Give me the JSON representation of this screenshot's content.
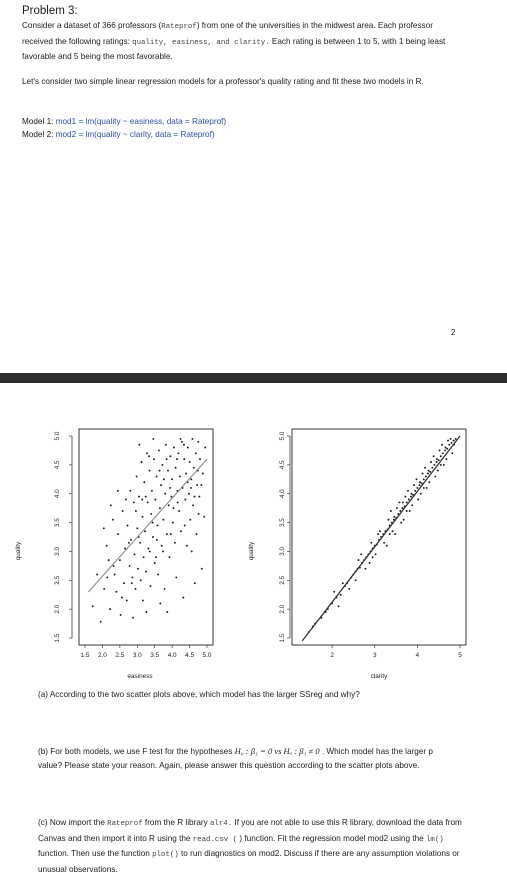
{
  "problem": {
    "title": "Problem 3:",
    "intro_part1": "Consider a dataset of 366 professors (",
    "intro_code": "Rateprof",
    "intro_part2": ") from one of the universities in the midwest area. Each professor received the following ratings: ",
    "intro_code2": "quality, easiness, and clarity.",
    "intro_part3": " Each rating is between 1 to 5, with 1 being least favorable and 5 being the most favorable.",
    "consider_text": "Let's consider two simple linear regression models for a professor's quality rating and fit these two models in R.",
    "model1_label": "Model 1:",
    "model1_code": "mod1 = lm(quality ~ easiness, data = Rateprof)",
    "model2_label": "Model 2:",
    "model2_code": "mod2 = lm(quality ~ clarity, data = Rateprof)",
    "page_number": "2"
  },
  "chart_data": [
    {
      "type": "scatter",
      "xlabel": "easiness",
      "ylabel": "quality",
      "xlim": [
        1.5,
        5.0
      ],
      "ylim": [
        1.5,
        5.0
      ],
      "xticks": [
        "1.5",
        "2.0",
        "2.5",
        "3.0",
        "3.5",
        "4.0",
        "4.5",
        "5.0"
      ],
      "yticks": [
        "1.5",
        "2.0",
        "2.5",
        "3.0",
        "3.5",
        "4.0",
        "4.5",
        "5.0"
      ],
      "fit_line": {
        "from": [
          1.6,
          2.3
        ],
        "to": [
          5.0,
          4.6
        ]
      },
      "points": [
        [
          1.72,
          2.05
        ],
        [
          1.85,
          2.6
        ],
        [
          1.95,
          1.78
        ],
        [
          2.05,
          2.35
        ],
        [
          2.12,
          3.1
        ],
        [
          2.18,
          2.85
        ],
        [
          2.22,
          2.0
        ],
        [
          2.3,
          3.55
        ],
        [
          2.35,
          2.6
        ],
        [
          2.4,
          2.3
        ],
        [
          2.45,
          3.3
        ],
        [
          2.5,
          2.85
        ],
        [
          2.52,
          1.9
        ],
        [
          2.58,
          3.7
        ],
        [
          2.62,
          2.45
        ],
        [
          2.65,
          3.05
        ],
        [
          2.7,
          2.15
        ],
        [
          2.72,
          3.45
        ],
        [
          2.78,
          2.75
        ],
        [
          2.8,
          4.05
        ],
        [
          2.82,
          3.2
        ],
        [
          2.86,
          2.55
        ],
        [
          2.9,
          3.85
        ],
        [
          2.92,
          2.95
        ],
        [
          2.95,
          2.35
        ],
        [
          2.98,
          4.3
        ],
        [
          3.0,
          3.4
        ],
        [
          3.02,
          2.7
        ],
        [
          3.05,
          3.95
        ],
        [
          3.08,
          3.15
        ],
        [
          3.1,
          2.5
        ],
        [
          3.12,
          4.55
        ],
        [
          3.15,
          3.6
        ],
        [
          3.18,
          2.9
        ],
        [
          3.2,
          4.2
        ],
        [
          3.22,
          3.35
        ],
        [
          3.25,
          2.65
        ],
        [
          3.28,
          4.7
        ],
        [
          3.3,
          3.85
        ],
        [
          3.32,
          3.05
        ],
        [
          3.35,
          4.4
        ],
        [
          3.38,
          2.4
        ],
        [
          3.4,
          3.65
        ],
        [
          3.42,
          4.05
        ],
        [
          3.45,
          3.25
        ],
        [
          3.48,
          4.6
        ],
        [
          3.5,
          2.8
        ],
        [
          3.52,
          3.9
        ],
        [
          3.55,
          4.3
        ],
        [
          3.58,
          3.45
        ],
        [
          3.6,
          2.6
        ],
        [
          3.62,
          4.75
        ],
        [
          3.65,
          3.75
        ],
        [
          3.68,
          4.15
        ],
        [
          3.7,
          3.1
        ],
        [
          3.72,
          4.5
        ],
        [
          3.75,
          3.55
        ],
        [
          3.78,
          2.35
        ],
        [
          3.8,
          4.0
        ],
        [
          3.82,
          4.85
        ],
        [
          3.85,
          3.3
        ],
        [
          3.88,
          4.4
        ],
        [
          3.9,
          3.8
        ],
        [
          3.92,
          2.9
        ],
        [
          3.95,
          4.65
        ],
        [
          3.98,
          3.95
        ],
        [
          4.0,
          4.25
        ],
        [
          4.02,
          3.5
        ],
        [
          4.05,
          4.8
        ],
        [
          4.08,
          3.15
        ],
        [
          4.1,
          4.45
        ],
        [
          4.12,
          2.55
        ],
        [
          4.15,
          4.05
        ],
        [
          4.18,
          4.7
        ],
        [
          4.2,
          3.7
        ],
        [
          4.22,
          4.3
        ],
        [
          4.25,
          3.35
        ],
        [
          4.28,
          4.9
        ],
        [
          4.3,
          4.1
        ],
        [
          4.32,
          2.2
        ],
        [
          4.35,
          4.6
        ],
        [
          4.38,
          3.9
        ],
        [
          4.4,
          4.35
        ],
        [
          4.42,
          3.1
        ],
        [
          4.45,
          4.8
        ],
        [
          4.48,
          4.0
        ],
        [
          4.5,
          4.55
        ],
        [
          4.52,
          3.55
        ],
        [
          4.55,
          4.25
        ],
        [
          4.58,
          4.95
        ],
        [
          4.6,
          3.8
        ],
        [
          4.62,
          4.45
        ],
        [
          4.65,
          2.45
        ],
        [
          4.68,
          4.7
        ],
        [
          4.7,
          3.3
        ],
        [
          4.72,
          4.15
        ],
        [
          4.75,
          4.9
        ],
        [
          4.78,
          3.95
        ],
        [
          4.8,
          4.6
        ],
        [
          4.85,
          2.7
        ],
        [
          4.88,
          4.35
        ],
        [
          4.92,
          3.6
        ],
        [
          4.95,
          4.8
        ],
        [
          2.68,
          3.9
        ],
        [
          2.88,
          1.85
        ],
        [
          3.06,
          4.85
        ],
        [
          3.26,
          1.95
        ],
        [
          3.46,
          4.95
        ],
        [
          3.66,
          2.1
        ],
        [
          3.86,
          1.95
        ],
        [
          2.44,
          4.05
        ],
        [
          2.24,
          3.8
        ],
        [
          2.04,
          3.4
        ],
        [
          3.16,
          2.15
        ],
        [
          3.36,
          3.0
        ],
        [
          3.56,
          3.2
        ],
        [
          3.76,
          4.25
        ],
        [
          3.96,
          3.3
        ],
        [
          4.16,
          3.85
        ],
        [
          4.36,
          3.45
        ],
        [
          4.56,
          3.0
        ],
        [
          4.76,
          3.65
        ],
        [
          2.56,
          2.2
        ],
        [
          2.76,
          3.15
        ],
        [
          2.96,
          3.7
        ],
        [
          3.14,
          3.9
        ],
        [
          3.34,
          4.65
        ],
        [
          3.54,
          2.9
        ],
        [
          3.74,
          3.0
        ],
        [
          3.94,
          4.1
        ],
        [
          4.14,
          4.6
        ],
        [
          4.34,
          4.85
        ],
        [
          4.54,
          4.1
        ],
        [
          4.74,
          4.4
        ],
        [
          2.32,
          2.75
        ],
        [
          2.14,
          2.55
        ],
        [
          2.84,
          2.45
        ],
        [
          3.04,
          3.25
        ],
        [
          3.24,
          3.95
        ],
        [
          3.44,
          3.5
        ],
        [
          3.64,
          4.4
        ],
        [
          3.84,
          4.6
        ],
        [
          4.04,
          3.75
        ],
        [
          4.24,
          4.95
        ],
        [
          4.44,
          4.2
        ],
        [
          4.64,
          3.95
        ],
        [
          4.84,
          4.15
        ]
      ]
    },
    {
      "type": "scatter",
      "xlabel": "clarity",
      "ylabel": "quality",
      "xlim": [
        1.2,
        5.0
      ],
      "ylim": [
        1.5,
        5.0
      ],
      "xticks": [
        "2",
        "3",
        "4",
        "5"
      ],
      "yticks": [
        "1.5",
        "2.0",
        "2.5",
        "3.0",
        "3.5",
        "4.0",
        "4.5",
        "5.0"
      ],
      "fit_line": {
        "from": [
          1.3,
          1.45
        ],
        "to": [
          5.0,
          5.0
        ]
      },
      "points": [
        [
          1.45,
          1.6
        ],
        [
          1.6,
          1.75
        ],
        [
          1.75,
          1.85
        ],
        [
          1.9,
          2.0
        ],
        [
          2.0,
          2.1
        ],
        [
          2.1,
          2.2
        ],
        [
          2.2,
          2.25
        ],
        [
          2.3,
          2.4
        ],
        [
          2.35,
          2.45
        ],
        [
          2.45,
          2.55
        ],
        [
          2.5,
          2.6
        ],
        [
          2.55,
          2.65
        ],
        [
          2.6,
          2.7
        ],
        [
          2.65,
          2.72
        ],
        [
          2.7,
          2.8
        ],
        [
          2.75,
          2.85
        ],
        [
          2.8,
          2.9
        ],
        [
          2.85,
          2.95
        ],
        [
          2.9,
          3.0
        ],
        [
          2.95,
          3.05
        ],
        [
          3.0,
          3.1
        ],
        [
          3.05,
          3.12
        ],
        [
          3.1,
          3.2
        ],
        [
          3.15,
          3.25
        ],
        [
          3.2,
          3.3
        ],
        [
          3.25,
          3.35
        ],
        [
          3.3,
          3.38
        ],
        [
          3.35,
          3.45
        ],
        [
          3.4,
          3.5
        ],
        [
          3.45,
          3.55
        ],
        [
          3.5,
          3.58
        ],
        [
          3.55,
          3.65
        ],
        [
          3.6,
          3.7
        ],
        [
          3.65,
          3.75
        ],
        [
          3.7,
          3.78
        ],
        [
          3.75,
          3.85
        ],
        [
          3.8,
          3.9
        ],
        [
          3.85,
          3.95
        ],
        [
          3.9,
          3.98
        ],
        [
          3.95,
          4.05
        ],
        [
          4.0,
          4.1
        ],
        [
          4.05,
          4.15
        ],
        [
          4.1,
          4.18
        ],
        [
          4.15,
          4.25
        ],
        [
          4.2,
          4.3
        ],
        [
          4.25,
          4.35
        ],
        [
          4.3,
          4.38
        ],
        [
          4.35,
          4.45
        ],
        [
          4.4,
          4.5
        ],
        [
          4.45,
          4.55
        ],
        [
          4.5,
          4.58
        ],
        [
          4.55,
          4.65
        ],
        [
          4.6,
          4.7
        ],
        [
          4.65,
          4.75
        ],
        [
          4.7,
          4.78
        ],
        [
          4.75,
          4.85
        ],
        [
          4.8,
          4.88
        ],
        [
          4.85,
          4.92
        ],
        [
          4.9,
          4.95
        ],
        [
          2.25,
          2.45
        ],
        [
          2.4,
          2.35
        ],
        [
          2.62,
          2.85
        ],
        [
          2.78,
          2.7
        ],
        [
          2.92,
          3.15
        ],
        [
          3.02,
          2.95
        ],
        [
          3.12,
          3.35
        ],
        [
          3.22,
          3.15
        ],
        [
          3.32,
          3.55
        ],
        [
          3.42,
          3.35
        ],
        [
          3.52,
          3.75
        ],
        [
          3.62,
          3.5
        ],
        [
          3.72,
          3.95
        ],
        [
          3.82,
          3.7
        ],
        [
          3.92,
          4.15
        ],
        [
          4.02,
          3.9
        ],
        [
          4.12,
          4.35
        ],
        [
          4.22,
          4.1
        ],
        [
          4.32,
          4.55
        ],
        [
          4.42,
          4.3
        ],
        [
          4.52,
          4.75
        ],
        [
          4.62,
          4.5
        ],
        [
          4.72,
          4.92
        ],
        [
          4.82,
          4.7
        ],
        [
          3.38,
          3.7
        ],
        [
          3.48,
          3.3
        ],
        [
          3.58,
          3.85
        ],
        [
          3.68,
          3.55
        ],
        [
          3.78,
          4.05
        ],
        [
          3.88,
          3.8
        ],
        [
          3.98,
          4.25
        ],
        [
          4.08,
          4.0
        ],
        [
          4.18,
          4.45
        ],
        [
          4.28,
          4.2
        ],
        [
          4.38,
          4.65
        ],
        [
          4.48,
          4.4
        ],
        [
          4.58,
          4.85
        ],
        [
          4.68,
          4.6
        ],
        [
          4.78,
          4.95
        ],
        [
          2.05,
          2.3
        ],
        [
          1.85,
          1.95
        ],
        [
          1.55,
          1.7
        ],
        [
          2.15,
          2.05
        ],
        [
          2.68,
          2.95
        ],
        [
          2.88,
          2.8
        ],
        [
          3.08,
          3.3
        ],
        [
          3.28,
          3.1
        ],
        [
          3.46,
          3.6
        ],
        [
          3.66,
          3.85
        ],
        [
          3.86,
          4.0
        ],
        [
          4.06,
          4.2
        ],
        [
          4.26,
          4.4
        ],
        [
          4.46,
          4.6
        ],
        [
          4.66,
          4.8
        ],
        [
          4.86,
          4.85
        ],
        [
          2.55,
          2.5
        ],
        [
          2.95,
          2.9
        ],
        [
          3.35,
          3.3
        ],
        [
          3.75,
          3.7
        ],
        [
          4.15,
          4.1
        ],
        [
          4.55,
          4.5
        ]
      ]
    }
  ],
  "questions": {
    "a": "(a) According to the two scatter plots above, which model has the larger SSreg and why?",
    "b_part1": "(b) For both models, we use F test for the hypotheses ",
    "b_math": "H₀ : β₁ = 0 vs Hₐ : β₁ ≠ 0",
    "b_part2": " . Which model has the larger p value? Please state your reason. Again, please answer this question according to the scatter plots above.",
    "c_part1": "(c) Now import the ",
    "c_code1": "Rateprof",
    "c_part2": " from the R library ",
    "c_code2": "alr4.",
    "c_part3": " If you are not able to use this R library, download the data from Canvas and then import it into R using the ",
    "c_code3": "read.csv (",
    "c_part4": " ) function. Fit the regression model mod2 using the ",
    "c_code4": "lm()",
    "c_part5": " function. Then use the function ",
    "c_code5": "plot()",
    "c_part6": " to run diagnostics on mod2. Discuss if there are any assumption violations or unusual observations."
  },
  "colors": {
    "model_code": "#2d4fa8",
    "divider": "#2e2e2e"
  }
}
